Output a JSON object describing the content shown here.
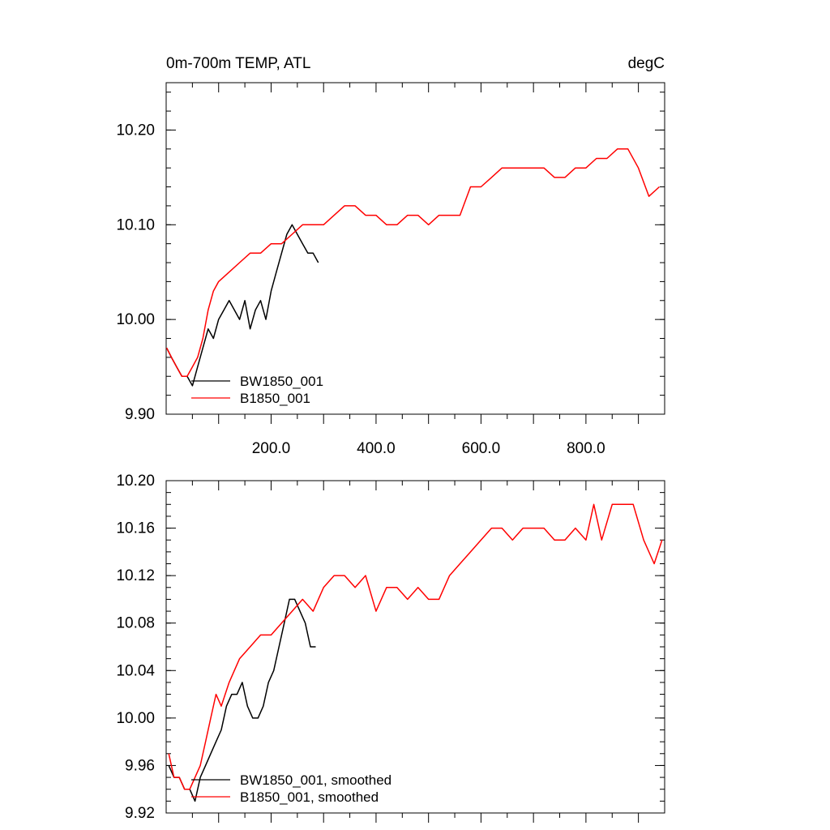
{
  "colors": {
    "bw": "#000000",
    "b": "#ff0000",
    "axis": "#000000"
  },
  "chart_data": [
    {
      "type": "line",
      "title": "0m-700m TEMP, ATL",
      "units": "degC",
      "xlim": [
        0,
        950
      ],
      "ylim": [
        9.9,
        10.25
      ],
      "xticks": [
        200,
        400,
        600,
        800
      ],
      "xtick_labels": [
        "200.0",
        "400.0",
        "600.0",
        "800.0"
      ],
      "yticks": [
        9.9,
        10.0,
        10.1,
        10.2
      ],
      "ytick_labels": [
        "9.90",
        "10.00",
        "10.10",
        "10.20"
      ],
      "legend": [
        "BW1850_001",
        "B1850_001"
      ],
      "series": [
        {
          "name": "BW1850_001",
          "color": "#000000",
          "x": [
            1,
            10,
            20,
            30,
            40,
            50,
            60,
            70,
            80,
            90,
            100,
            110,
            120,
            130,
            140,
            150,
            160,
            170,
            180,
            190,
            200,
            210,
            220,
            230,
            240,
            250,
            260,
            270,
            280,
            290
          ],
          "y": [
            9.97,
            9.96,
            9.95,
            9.94,
            9.94,
            9.93,
            9.95,
            9.97,
            9.99,
            9.98,
            10.0,
            10.01,
            10.02,
            10.01,
            10.0,
            10.02,
            9.99,
            10.01,
            10.02,
            10.0,
            10.03,
            10.05,
            10.07,
            10.09,
            10.1,
            10.09,
            10.08,
            10.07,
            10.07,
            10.06
          ]
        },
        {
          "name": "B1850_001",
          "color": "#ff0000",
          "x": [
            1,
            10,
            20,
            30,
            40,
            50,
            60,
            70,
            80,
            90,
            100,
            120,
            140,
            160,
            180,
            200,
            220,
            240,
            260,
            280,
            300,
            320,
            340,
            360,
            380,
            400,
            420,
            440,
            460,
            480,
            500,
            520,
            540,
            560,
            580,
            600,
            620,
            640,
            660,
            680,
            700,
            720,
            740,
            760,
            780,
            800,
            820,
            840,
            860,
            880,
            900,
            920,
            940
          ],
          "y": [
            9.97,
            9.96,
            9.95,
            9.94,
            9.94,
            9.95,
            9.96,
            9.98,
            10.01,
            10.03,
            10.04,
            10.05,
            10.06,
            10.07,
            10.07,
            10.08,
            10.08,
            10.09,
            10.1,
            10.1,
            10.1,
            10.11,
            10.12,
            10.12,
            10.11,
            10.11,
            10.1,
            10.1,
            10.11,
            10.11,
            10.1,
            10.11,
            10.11,
            10.11,
            10.14,
            10.14,
            10.15,
            10.16,
            10.16,
            10.16,
            10.16,
            10.16,
            10.15,
            10.15,
            10.16,
            10.16,
            10.17,
            10.17,
            10.18,
            10.18,
            10.16,
            10.13,
            10.14
          ]
        }
      ]
    },
    {
      "type": "line",
      "xlim": [
        0,
        950
      ],
      "ylim": [
        9.92,
        10.2
      ],
      "yticks": [
        9.92,
        9.96,
        10.0,
        10.04,
        10.08,
        10.12,
        10.16,
        10.2
      ],
      "ytick_labels": [
        "9.92",
        "9.96",
        "10.00",
        "10.04",
        "10.08",
        "10.12",
        "10.16",
        "10.20"
      ],
      "legend": [
        "BW1850_001, smoothed",
        "B1850_001, smoothed"
      ],
      "series": [
        {
          "name": "BW1850_001, smoothed",
          "color": "#000000",
          "x": [
            5,
            15,
            25,
            35,
            45,
            55,
            65,
            75,
            85,
            95,
            105,
            115,
            125,
            135,
            145,
            155,
            165,
            175,
            185,
            195,
            205,
            215,
            225,
            235,
            245,
            255,
            265,
            275,
            285
          ],
          "y": [
            9.96,
            9.95,
            9.95,
            9.94,
            9.94,
            9.93,
            9.95,
            9.96,
            9.97,
            9.98,
            9.99,
            10.01,
            10.02,
            10.02,
            10.03,
            10.01,
            10.0,
            10.0,
            10.01,
            10.03,
            10.04,
            10.06,
            10.08,
            10.1,
            10.1,
            10.09,
            10.08,
            10.06,
            10.06
          ]
        },
        {
          "name": "B1850_001, smoothed",
          "color": "#ff0000",
          "x": [
            5,
            15,
            25,
            35,
            45,
            55,
            65,
            75,
            85,
            95,
            105,
            120,
            140,
            160,
            180,
            200,
            220,
            240,
            260,
            280,
            300,
            320,
            340,
            360,
            380,
            400,
            420,
            440,
            460,
            480,
            500,
            520,
            540,
            560,
            580,
            600,
            620,
            640,
            660,
            680,
            700,
            720,
            740,
            760,
            780,
            800,
            815,
            830,
            850,
            870,
            890,
            910,
            930,
            945
          ],
          "y": [
            9.97,
            9.95,
            9.95,
            9.94,
            9.94,
            9.95,
            9.96,
            9.98,
            10.0,
            10.02,
            10.01,
            10.03,
            10.05,
            10.06,
            10.07,
            10.07,
            10.08,
            10.09,
            10.1,
            10.09,
            10.11,
            10.12,
            10.12,
            10.11,
            10.12,
            10.09,
            10.11,
            10.11,
            10.1,
            10.11,
            10.1,
            10.1,
            10.12,
            10.13,
            10.14,
            10.15,
            10.16,
            10.16,
            10.15,
            10.16,
            10.16,
            10.16,
            10.15,
            10.15,
            10.16,
            10.15,
            10.18,
            10.15,
            10.18,
            10.18,
            10.18,
            10.15,
            10.13,
            10.15
          ]
        }
      ]
    }
  ]
}
